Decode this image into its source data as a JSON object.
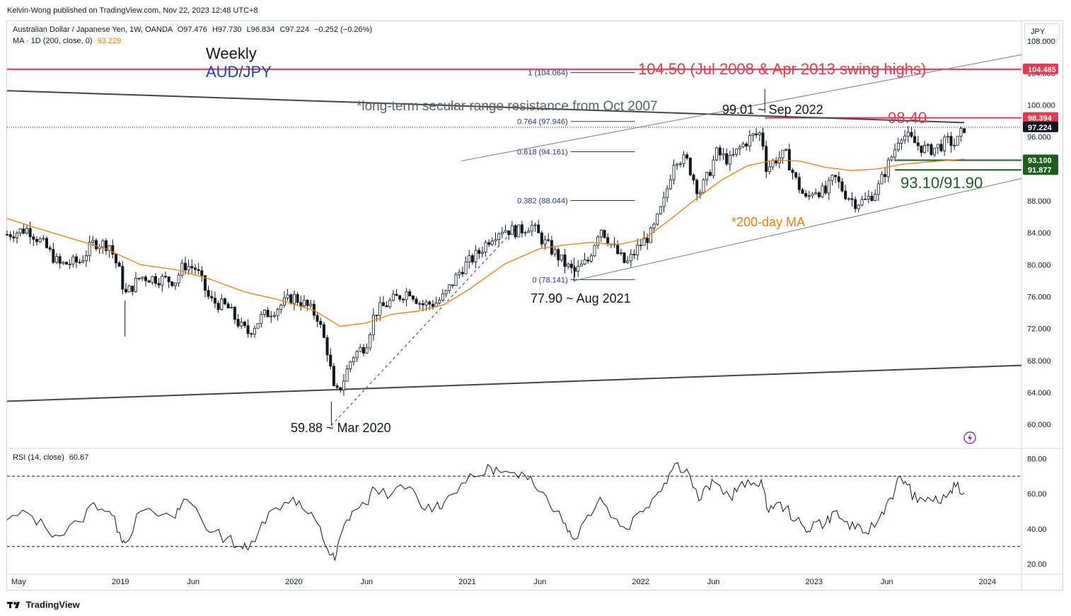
{
  "header": {
    "published_by": "Kelvin-Wong published on TradingView.com, Nov 22, 2023 12:48 UTC+8",
    "symbol_line": "Australian Dollar / Japanese Yen, 1W, OANDA",
    "open": "O97.476",
    "high": "H97.730",
    "low": "L96.834",
    "close": "C97.224",
    "change": "−0.252 (−0.26%)",
    "ma_label": "MA · 1D (200, close, 0)",
    "ma_value": "93.229",
    "currency_button": "JPY"
  },
  "footer": {
    "logo_text": "TradingView",
    "logo_icon": "tradingview-logo-icon"
  },
  "colors": {
    "up": "#131722",
    "down": "#131722",
    "ma": "#f57c00",
    "resistance": "#e53950",
    "support": "#1b5e20",
    "fib": "#1e3a8a",
    "trend": "#434651",
    "channel": "#787b86"
  },
  "chart_data": [
    {
      "type": "candlestick",
      "title": "Weekly AUD/JPY",
      "title_line1": "Weekly",
      "title_line2": "AUD/JPY",
      "timeframe": "1W",
      "ylim": [
        57.0,
        110.5
      ],
      "y_ticks": [
        "108.000",
        "104.000",
        "100.000",
        "96.000",
        "92.000",
        "88.000",
        "84.000",
        "80.000",
        "76.000",
        "72.000",
        "68.000",
        "64.000",
        "60.000"
      ],
      "x_ticks": [
        "May",
        "2019",
        "Jun",
        "2020",
        "Jun",
        "2021",
        "Jun",
        "2022",
        "Jun",
        "2023",
        "Jun",
        "2024"
      ],
      "x_tick_dates": [
        2018.33,
        2019.0,
        2019.42,
        2020.0,
        2020.42,
        2021.0,
        2021.42,
        2022.0,
        2022.42,
        2023.0,
        2023.42,
        2024.0
      ],
      "xlim": [
        2018.33,
        2024.18
      ],
      "price_path": [
        [
          2018.33,
          83.8
        ],
        [
          2018.45,
          84.5
        ],
        [
          2018.55,
          82.3
        ],
        [
          2018.63,
          80.0
        ],
        [
          2018.75,
          80.4
        ],
        [
          2018.83,
          82.8
        ],
        [
          2018.92,
          82.5
        ],
        [
          2018.98,
          79.0
        ],
        [
          2019.01,
          76.2
        ],
        [
          2019.1,
          78.5
        ],
        [
          2019.3,
          78.0
        ],
        [
          2019.35,
          80.0
        ],
        [
          2019.42,
          79.5
        ],
        [
          2019.5,
          75.5
        ],
        [
          2019.6,
          74.7
        ],
        [
          2019.68,
          72.2
        ],
        [
          2019.72,
          71.5
        ],
        [
          2019.8,
          73.5
        ],
        [
          2019.88,
          74.5
        ],
        [
          2019.98,
          76.0
        ],
        [
          2020.05,
          75.0
        ],
        [
          2020.12,
          73.5
        ],
        [
          2020.18,
          69.0
        ],
        [
          2020.22,
          63.5
        ],
        [
          2020.26,
          65.0
        ],
        [
          2020.32,
          68.5
        ],
        [
          2020.4,
          70.0
        ],
        [
          2020.45,
          74.0
        ],
        [
          2020.55,
          75.5
        ],
        [
          2020.65,
          76.8
        ],
        [
          2020.72,
          75.0
        ],
        [
          2020.8,
          75.2
        ],
        [
          2020.85,
          76.0
        ],
        [
          2020.95,
          79.5
        ],
        [
          2021.05,
          81.5
        ],
        [
          2021.12,
          83.5
        ],
        [
          2021.18,
          84.5
        ],
        [
          2021.28,
          84.2
        ],
        [
          2021.35,
          85.0
        ],
        [
          2021.42,
          83.0
        ],
        [
          2021.5,
          81.2
        ],
        [
          2021.55,
          80.0
        ],
        [
          2021.6,
          79.0
        ],
        [
          2021.68,
          80.5
        ],
        [
          2021.75,
          84.8
        ],
        [
          2021.83,
          82.0
        ],
        [
          2021.9,
          80.0
        ],
        [
          2021.98,
          82.5
        ],
        [
          2022.05,
          84.0
        ],
        [
          2022.12,
          88.0
        ],
        [
          2022.18,
          93.5
        ],
        [
          2022.25,
          93.0
        ],
        [
          2022.32,
          89.0
        ],
        [
          2022.37,
          91.0
        ],
        [
          2022.42,
          94.0
        ],
        [
          2022.5,
          93.0
        ],
        [
          2022.55,
          94.5
        ],
        [
          2022.62,
          96.0
        ],
        [
          2022.68,
          96.5
        ],
        [
          2022.71,
          92.0
        ],
        [
          2022.76,
          93.2
        ],
        [
          2022.82,
          93.8
        ],
        [
          2022.88,
          90.5
        ],
        [
          2022.94,
          88.0
        ],
        [
          2022.98,
          89.5
        ],
        [
          2023.05,
          89.0
        ],
        [
          2023.1,
          91.0
        ],
        [
          2023.16,
          89.0
        ],
        [
          2023.22,
          87.8
        ],
        [
          2023.28,
          88.0
        ],
        [
          2023.35,
          89.5
        ],
        [
          2023.4,
          92.0
        ],
        [
          2023.45,
          94.5
        ],
        [
          2023.48,
          96.5
        ],
        [
          2023.52,
          96.0
        ],
        [
          2023.58,
          95.0
        ],
        [
          2023.64,
          94.3
        ],
        [
          2023.7,
          94.8
        ],
        [
          2023.76,
          95.5
        ],
        [
          2023.8,
          95.0
        ],
        [
          2023.85,
          97.2
        ]
      ],
      "series": [
        {
          "name": "MA · 1D (200, close, 0)",
          "points": [
            [
              2018.33,
              85.8
            ],
            [
              2018.5,
              84.6
            ],
            [
              2018.7,
              83.3
            ],
            [
              2018.9,
              82.0
            ],
            [
              2019.1,
              80.0
            ],
            [
              2019.3,
              79.4
            ],
            [
              2019.5,
              78.2
            ],
            [
              2019.7,
              76.6
            ],
            [
              2019.9,
              75.6
            ],
            [
              2020.1,
              74.3
            ],
            [
              2020.25,
              72.3
            ],
            [
              2020.4,
              72.7
            ],
            [
              2020.55,
              73.8
            ],
            [
              2020.7,
              74.2
            ],
            [
              2020.85,
              75.0
            ],
            [
              2021.0,
              77.0
            ],
            [
              2021.2,
              80.1
            ],
            [
              2021.4,
              82.0
            ],
            [
              2021.55,
              82.5
            ],
            [
              2021.7,
              82.8
            ],
            [
              2021.85,
              82.5
            ],
            [
              2022.0,
              83.2
            ],
            [
              2022.15,
              85.6
            ],
            [
              2022.3,
              88.2
            ],
            [
              2022.45,
              90.6
            ],
            [
              2022.6,
              92.4
            ],
            [
              2022.75,
              93.1
            ],
            [
              2022.9,
              93.0
            ],
            [
              2023.05,
              92.2
            ],
            [
              2023.2,
              91.8
            ],
            [
              2023.35,
              92.0
            ],
            [
              2023.5,
              92.6
            ],
            [
              2023.65,
              92.9
            ],
            [
              2023.85,
              93.229
            ]
          ]
        }
      ],
      "key_points": [
        {
          "label": "59.88 ~ Mar 2020",
          "date": 2020.2,
          "price": 59.88
        },
        {
          "label": "77.90 ~ Aug 2021",
          "date": 2021.6,
          "price": 77.9
        },
        {
          "label": "99.01 ~ Sep 2022",
          "date": 2022.7,
          "price": 99.01
        }
      ],
      "horizontal_levels": [
        {
          "price": 104.485,
          "axis_label": "104.485",
          "label": "104.50 (Jul 2008 & Apr 2013 swing highs)",
          "color": "#e53950"
        },
        {
          "price": 98.394,
          "axis_label": "98.394",
          "label": "98.40",
          "color": "#e53950"
        },
        {
          "price": 93.1,
          "axis_label": "93.100",
          "label": "",
          "color": "#1b5e20"
        },
        {
          "price": 91.877,
          "axis_label": "91.877",
          "label": "",
          "color": "#1b5e20"
        }
      ],
      "support_label": "93.10/91.90",
      "last_price": {
        "value": 97.224,
        "axis_label": "97.224"
      },
      "fib_levels": [
        {
          "label": "1 (104.064)",
          "price": 104.064
        },
        {
          "label": "0.764 (97.946)",
          "price": 97.946
        },
        {
          "label": "0.618 (94.161)",
          "price": 94.161
        },
        {
          "label": "0.382 (88.044)",
          "price": 88.044
        },
        {
          "label": "0 (78.141)",
          "price": 78.141
        }
      ],
      "trend_lines": [
        {
          "name": "long-term-resistance",
          "from": [
            2018.33,
            101.8
          ],
          "to": [
            2023.85,
            97.8
          ]
        },
        {
          "name": "long-term-support",
          "from": [
            2018.33,
            62.9
          ],
          "to": [
            2024.18,
            67.4
          ]
        },
        {
          "name": "channel-upper",
          "from": [
            2020.95,
            93.0
          ],
          "to": [
            2024.18,
            106.3
          ]
        },
        {
          "name": "channel-lower",
          "from": [
            2021.6,
            78.0
          ],
          "to": [
            2024.18,
            90.8
          ]
        }
      ],
      "annotations": {
        "resistance_note": "*long-term secular range resistance from Oct 2007",
        "ma_note": "*200-day MA"
      }
    },
    {
      "type": "line",
      "title": "RSI (14, close)",
      "current_value": "60.67",
      "ylim": [
        15,
        85
      ],
      "y_ticks": [
        "80.00",
        "60.00",
        "40.00",
        "20.00"
      ],
      "overbought": 70,
      "oversold": 30,
      "x": [
        2018.33,
        2018.45,
        2018.55,
        2018.63,
        2018.75,
        2018.83,
        2018.92,
        2018.98,
        2019.01,
        2019.1,
        2019.3,
        2019.35,
        2019.42,
        2019.5,
        2019.6,
        2019.68,
        2019.72,
        2019.8,
        2019.88,
        2019.98,
        2020.05,
        2020.12,
        2020.18,
        2020.22,
        2020.26,
        2020.32,
        2020.4,
        2020.45,
        2020.55,
        2020.65,
        2020.72,
        2020.8,
        2020.85,
        2020.95,
        2021.05,
        2021.12,
        2021.18,
        2021.28,
        2021.35,
        2021.42,
        2021.5,
        2021.55,
        2021.6,
        2021.68,
        2021.75,
        2021.83,
        2021.9,
        2021.98,
        2022.05,
        2022.12,
        2022.18,
        2022.25,
        2022.32,
        2022.37,
        2022.42,
        2022.5,
        2022.55,
        2022.62,
        2022.68,
        2022.71,
        2022.76,
        2022.82,
        2022.88,
        2022.94,
        2022.98,
        2023.05,
        2023.1,
        2023.16,
        2023.22,
        2023.28,
        2023.35,
        2023.4,
        2023.45,
        2023.48,
        2023.52,
        2023.58,
        2023.64,
        2023.7,
        2023.76,
        2023.8,
        2023.85
      ],
      "values": [
        45,
        49,
        41,
        36,
        44,
        55,
        50,
        38,
        32,
        50,
        46,
        57,
        52,
        38,
        35,
        30,
        28,
        44,
        52,
        58,
        50,
        43,
        28,
        22,
        38,
        50,
        54,
        63,
        60,
        64,
        52,
        53,
        55,
        66,
        70,
        75,
        72,
        69,
        70,
        61,
        50,
        43,
        34,
        48,
        58,
        46,
        40,
        50,
        57,
        66,
        77,
        74,
        56,
        64,
        66,
        58,
        64,
        65,
        68,
        52,
        54,
        52,
        45,
        38,
        44,
        43,
        50,
        44,
        40,
        38,
        44,
        54,
        62,
        70,
        65,
        55,
        58,
        55,
        60,
        64,
        60.67
      ]
    }
  ]
}
